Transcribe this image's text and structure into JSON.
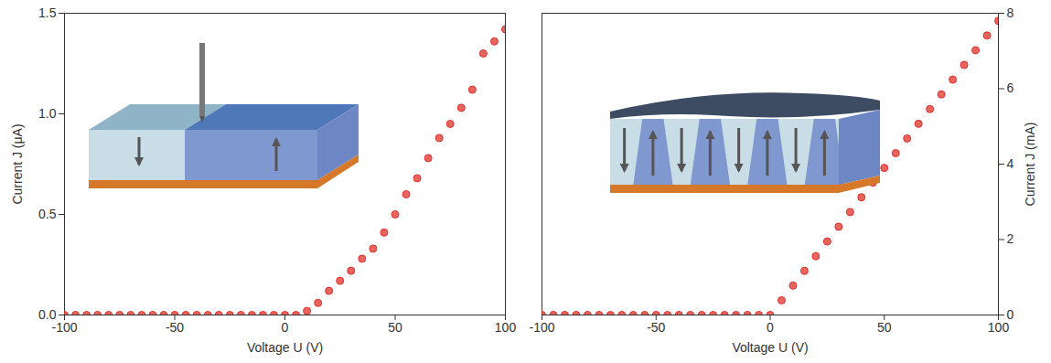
{
  "chart_data": [
    {
      "type": "scatter",
      "xlabel": "Voltage U (V)",
      "ylabel": "Current J (μA)",
      "x": [
        -100,
        -95,
        -90,
        -85,
        -80,
        -75,
        -70,
        -65,
        -60,
        -55,
        -50,
        -45,
        -40,
        -35,
        -30,
        -25,
        -20,
        -15,
        -10,
        -5,
        0,
        5,
        10,
        15,
        20,
        25,
        30,
        35,
        40,
        45,
        50,
        55,
        60,
        65,
        70,
        75,
        80,
        85,
        90,
        95,
        100
      ],
      "values": [
        0,
        0,
        0,
        0,
        0,
        0,
        0,
        0,
        0,
        0,
        0,
        0,
        0,
        0,
        0,
        0,
        0,
        0,
        0,
        0,
        0,
        0,
        0.02,
        0.06,
        0.12,
        0.17,
        0.22,
        0.28,
        0.33,
        0.41,
        0.5,
        0.6,
        0.68,
        0.78,
        0.88,
        0.95,
        1.03,
        1.12,
        1.3,
        1.36,
        1.42
      ],
      "color": "#e0312a",
      "marker": "circle",
      "xlim": [
        -100,
        100
      ],
      "xticks": [
        -100,
        -50,
        0,
        50,
        100
      ],
      "ylim": [
        0,
        1.5
      ],
      "yticks": [
        {
          "value": 0,
          "label": "0.0"
        },
        0.5,
        {
          "value": 1,
          "label": "1.0"
        },
        1.5
      ]
    },
    {
      "type": "scatter",
      "xlabel": "Voltage U (V)",
      "ylabel": "Current J (mA)",
      "x": [
        -100,
        -95,
        -90,
        -85,
        -80,
        -75,
        -70,
        -65,
        -60,
        -55,
        -50,
        -45,
        -40,
        -35,
        -30,
        -25,
        -20,
        -15,
        -10,
        -5,
        0,
        5,
        10,
        15,
        20,
        25,
        30,
        35,
        40,
        45,
        50,
        55,
        60,
        65,
        70,
        75,
        80,
        85,
        90,
        95,
        100
      ],
      "values": [
        0,
        0,
        0,
        0,
        0,
        0,
        0,
        0,
        0,
        0,
        0,
        0,
        0,
        0,
        0,
        0,
        0,
        0,
        0,
        0,
        0,
        0.39,
        0.78,
        1.17,
        1.56,
        1.95,
        2.34,
        2.73,
        3.12,
        3.51,
        3.9,
        4.29,
        4.68,
        5.07,
        5.46,
        5.85,
        6.24,
        6.63,
        7.02,
        7.41,
        7.8
      ],
      "color": "#e0312a",
      "marker": "circle",
      "xlim": [
        -100,
        100
      ],
      "xticks": [
        -100,
        -50,
        0,
        50,
        100
      ],
      "ylim": [
        0,
        8
      ],
      "yticks": [
        0,
        2,
        4,
        6,
        8
      ]
    }
  ]
}
